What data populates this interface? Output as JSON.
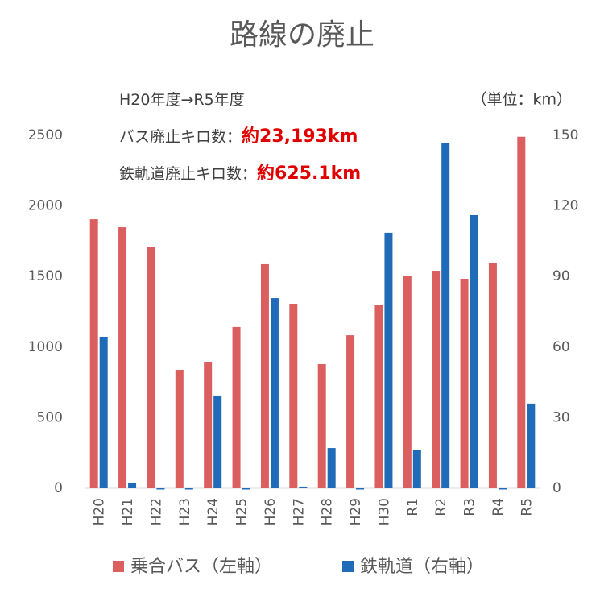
{
  "chart_data": {
    "type": "bar",
    "title": "路線の廃止",
    "unit_note": "（単位：km）",
    "annotations": [
      {
        "text": "H20年度→R5年度"
      },
      {
        "text": "バス廃止キロ数：",
        "highlight": "約23,193km"
      },
      {
        "text": "鉄軌道廃止キロ数：",
        "highlight": "約625.1km"
      }
    ],
    "categories": [
      "H20",
      "H21",
      "H22",
      "H23",
      "H24",
      "H25",
      "H26",
      "H27",
      "H28",
      "H29",
      "H30",
      "R1",
      "R2",
      "R3",
      "R4",
      "R5"
    ],
    "series": [
      {
        "name": "乗合バス（左軸）",
        "color": "#dc5f5f",
        "values": [
          1906,
          1849,
          1712,
          839,
          896,
          1142,
          1587,
          1307,
          879,
          1084,
          1301,
          1507,
          1541,
          1484,
          1598,
          2490
        ]
      },
      {
        "name": "鉄軌道（右軸）",
        "color": "#1f6bb8",
        "axis": "y2",
        "values": [
          64.4,
          2.4,
          0,
          0,
          39.4,
          0,
          80.8,
          0.7,
          17.1,
          0,
          108.6,
          16.4,
          146.6,
          116.1,
          0,
          36.0
        ]
      }
    ],
    "ylim": [
      0,
      2500
    ],
    "yticks": [
      0,
      500,
      1000,
      1500,
      2000,
      2500
    ],
    "y2lim": [
      0,
      150
    ],
    "y2ticks": [
      0,
      30,
      60,
      90,
      120,
      150
    ]
  }
}
